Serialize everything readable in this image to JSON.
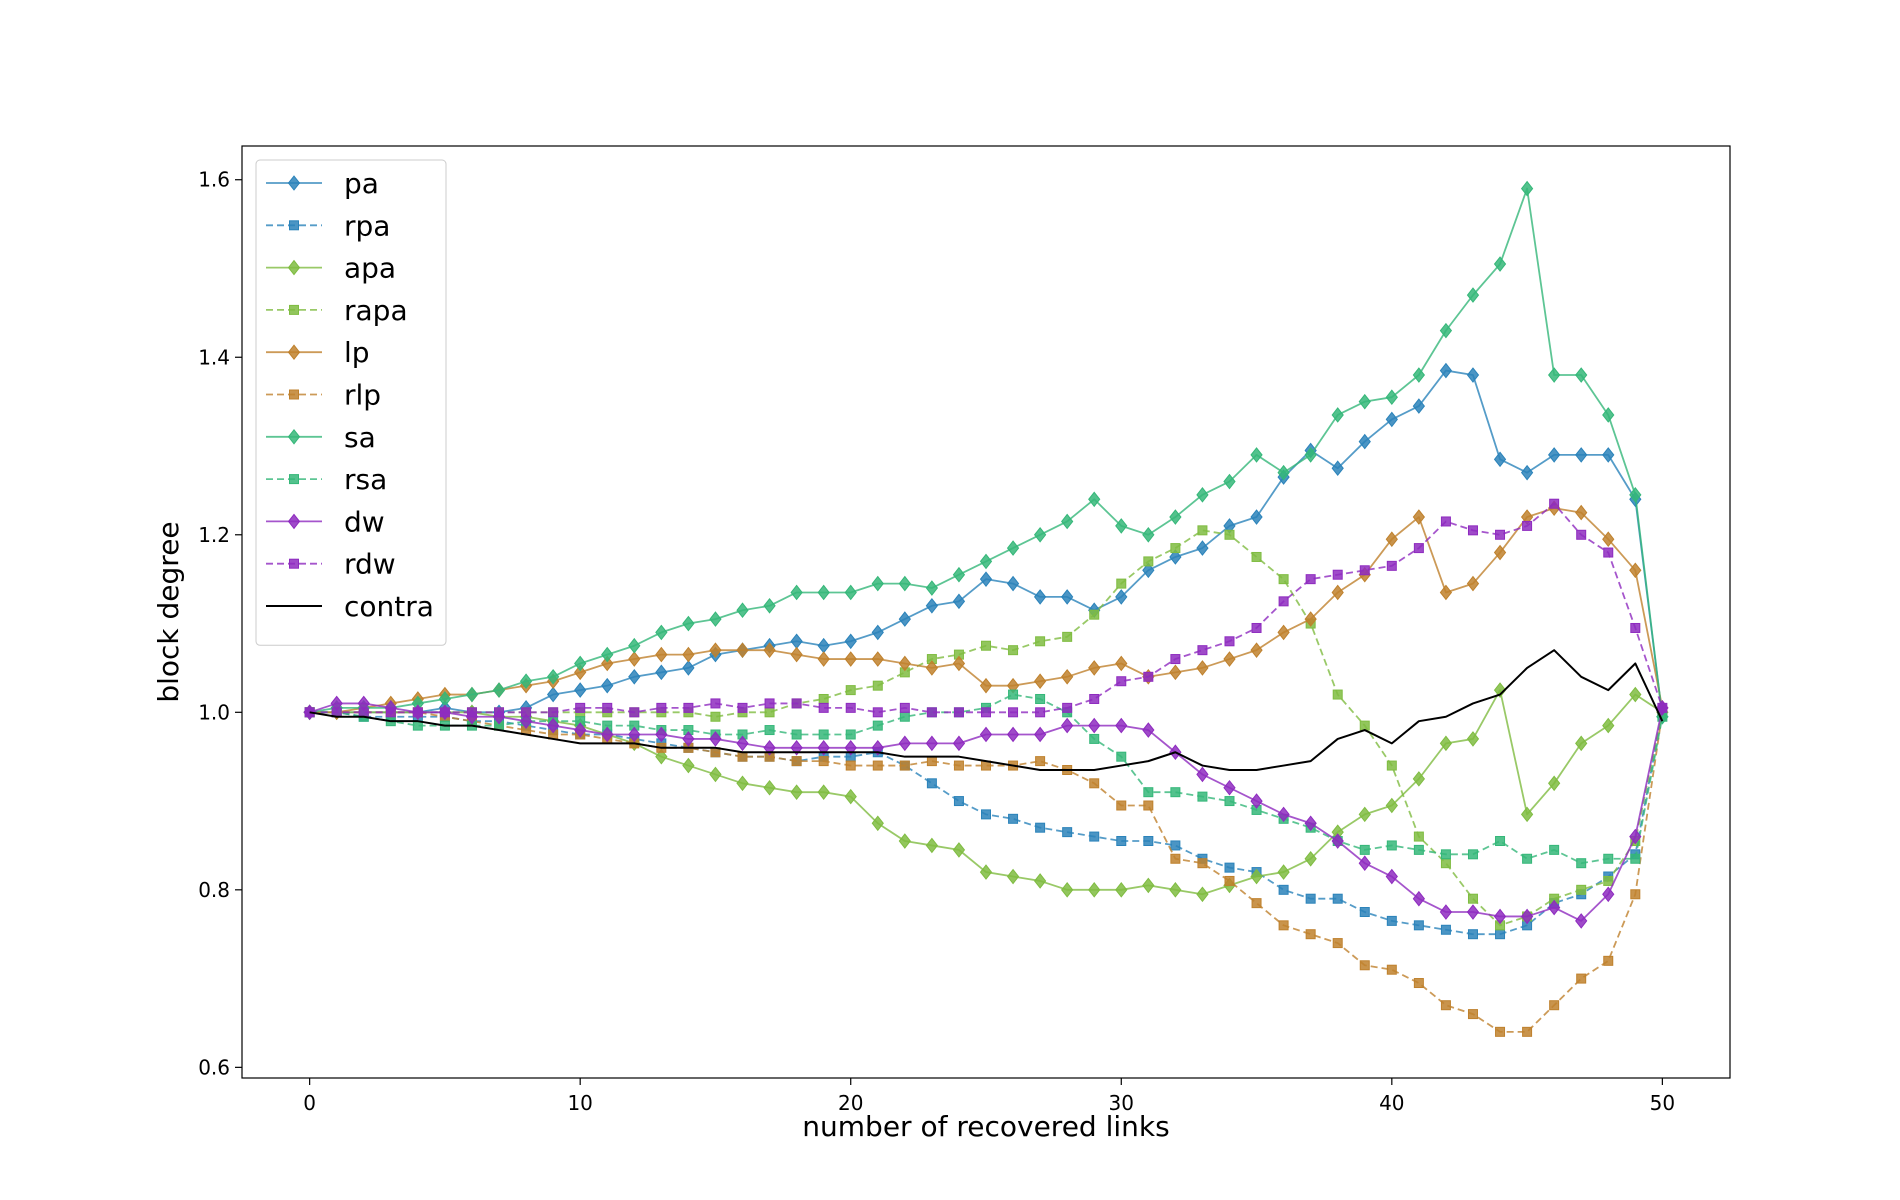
{
  "chart_data": {
    "type": "line",
    "title": "",
    "xlabel": "number of recovered links",
    "ylabel": "block degree",
    "xlim": [
      -2.5,
      52.5
    ],
    "ylim": [
      0.588,
      1.638
    ],
    "x_ticks": [
      0,
      10,
      20,
      30,
      40,
      50
    ],
    "y_ticks": [
      0.6,
      0.8,
      1.0,
      1.2,
      1.4,
      1.6
    ],
    "x_tick_labels": [
      "0",
      "10",
      "20",
      "30",
      "40",
      "50"
    ],
    "y_tick_labels": [
      "0.6",
      "0.8",
      "1.0",
      "1.2",
      "1.4",
      "1.6"
    ],
    "grid": false,
    "legend_position": "upper-left",
    "x": [
      0,
      1,
      2,
      3,
      4,
      5,
      6,
      7,
      8,
      9,
      10,
      11,
      12,
      13,
      14,
      15,
      16,
      17,
      18,
      19,
      20,
      21,
      22,
      23,
      24,
      25,
      26,
      27,
      28,
      29,
      30,
      31,
      32,
      33,
      34,
      35,
      36,
      37,
      38,
      39,
      40,
      41,
      42,
      43,
      44,
      45,
      46,
      47,
      48,
      49,
      50
    ],
    "series": [
      {
        "name": "pa",
        "color": "#2b83ba",
        "style": "solid",
        "marker": "diamond",
        "values": [
          1.0,
          1.0,
          1.0,
          1.0,
          1.0,
          1.005,
          1.0,
          1.0,
          1.005,
          1.02,
          1.025,
          1.03,
          1.04,
          1.045,
          1.05,
          1.065,
          1.07,
          1.075,
          1.08,
          1.075,
          1.08,
          1.09,
          1.105,
          1.12,
          1.125,
          1.15,
          1.145,
          1.13,
          1.13,
          1.115,
          1.13,
          1.16,
          1.175,
          1.185,
          1.21,
          1.22,
          1.265,
          1.295,
          1.275,
          1.305,
          1.33,
          1.345,
          1.385,
          1.38,
          1.285,
          1.27,
          1.29,
          1.29,
          1.29,
          1.24,
          0.995
        ]
      },
      {
        "name": "rpa",
        "color": "#2b83ba",
        "style": "dashed",
        "marker": "square",
        "values": [
          1.0,
          1.0,
          0.995,
          0.995,
          0.995,
          0.995,
          0.99,
          0.99,
          0.985,
          0.98,
          0.975,
          0.975,
          0.97,
          0.965,
          0.96,
          0.955,
          0.95,
          0.95,
          0.945,
          0.95,
          0.95,
          0.955,
          0.94,
          0.92,
          0.9,
          0.885,
          0.88,
          0.87,
          0.865,
          0.86,
          0.855,
          0.855,
          0.85,
          0.835,
          0.825,
          0.82,
          0.8,
          0.79,
          0.79,
          0.775,
          0.765,
          0.76,
          0.755,
          0.75,
          0.75,
          0.76,
          0.785,
          0.795,
          0.815,
          0.84,
          1.0
        ]
      },
      {
        "name": "apa",
        "color": "#7fbc41",
        "style": "solid",
        "marker": "diamond",
        "values": [
          1.0,
          1.0,
          1.0,
          1.0,
          1.0,
          1.0,
          1.0,
          0.995,
          0.995,
          0.99,
          0.985,
          0.975,
          0.965,
          0.95,
          0.94,
          0.93,
          0.92,
          0.915,
          0.91,
          0.91,
          0.905,
          0.875,
          0.855,
          0.85,
          0.845,
          0.82,
          0.815,
          0.81,
          0.8,
          0.8,
          0.8,
          0.805,
          0.8,
          0.795,
          0.805,
          0.815,
          0.82,
          0.835,
          0.865,
          0.885,
          0.895,
          0.925,
          0.965,
          0.97,
          1.025,
          0.885,
          0.92,
          0.965,
          0.985,
          1.02,
          1.0
        ]
      },
      {
        "name": "rapa",
        "color": "#7fbc41",
        "style": "dashed",
        "marker": "square",
        "values": [
          1.0,
          1.0,
          1.0,
          1.0,
          1.0,
          1.0,
          1.0,
          1.0,
          1.0,
          1.0,
          1.0,
          1.0,
          1.0,
          1.0,
          1.0,
          0.995,
          1.0,
          1.0,
          1.01,
          1.015,
          1.025,
          1.03,
          1.045,
          1.06,
          1.065,
          1.075,
          1.07,
          1.08,
          1.085,
          1.11,
          1.145,
          1.17,
          1.185,
          1.205,
          1.2,
          1.175,
          1.15,
          1.1,
          1.02,
          0.985,
          0.94,
          0.86,
          0.83,
          0.79,
          0.76,
          0.77,
          0.79,
          0.8,
          0.81,
          0.855,
          1.0
        ]
      },
      {
        "name": "lp",
        "color": "#bf812d",
        "style": "solid",
        "marker": "diamond",
        "values": [
          1.0,
          1.0,
          1.005,
          1.01,
          1.015,
          1.02,
          1.02,
          1.025,
          1.03,
          1.035,
          1.045,
          1.055,
          1.06,
          1.065,
          1.065,
          1.07,
          1.07,
          1.07,
          1.065,
          1.06,
          1.06,
          1.06,
          1.055,
          1.05,
          1.055,
          1.03,
          1.03,
          1.035,
          1.04,
          1.05,
          1.055,
          1.04,
          1.045,
          1.05,
          1.06,
          1.07,
          1.09,
          1.105,
          1.135,
          1.155,
          1.195,
          1.22,
          1.135,
          1.145,
          1.18,
          1.22,
          1.23,
          1.225,
          1.195,
          1.16,
          1.005
        ]
      },
      {
        "name": "rlp",
        "color": "#bf812d",
        "style": "dashed",
        "marker": "square",
        "values": [
          1.0,
          1.0,
          1.0,
          1.0,
          1.0,
          0.995,
          0.99,
          0.985,
          0.98,
          0.975,
          0.975,
          0.97,
          0.965,
          0.96,
          0.96,
          0.955,
          0.95,
          0.95,
          0.945,
          0.945,
          0.94,
          0.94,
          0.94,
          0.945,
          0.94,
          0.94,
          0.94,
          0.945,
          0.935,
          0.92,
          0.895,
          0.895,
          0.835,
          0.83,
          0.81,
          0.785,
          0.76,
          0.75,
          0.74,
          0.715,
          0.71,
          0.695,
          0.67,
          0.66,
          0.64,
          0.64,
          0.67,
          0.7,
          0.72,
          0.795,
          1.0
        ]
      },
      {
        "name": "sa",
        "color": "#35b779",
        "style": "solid",
        "marker": "diamond",
        "values": [
          1.0,
          1.005,
          1.005,
          1.005,
          1.01,
          1.015,
          1.02,
          1.025,
          1.035,
          1.04,
          1.055,
          1.065,
          1.075,
          1.09,
          1.1,
          1.105,
          1.115,
          1.12,
          1.135,
          1.135,
          1.135,
          1.145,
          1.145,
          1.14,
          1.155,
          1.17,
          1.185,
          1.2,
          1.215,
          1.24,
          1.21,
          1.2,
          1.22,
          1.245,
          1.26,
          1.29,
          1.27,
          1.29,
          1.335,
          1.35,
          1.355,
          1.38,
          1.43,
          1.47,
          1.505,
          1.59,
          1.38,
          1.38,
          1.335,
          1.245,
          0.995
        ]
      },
      {
        "name": "rsa",
        "color": "#35b779",
        "style": "dashed",
        "marker": "square",
        "values": [
          1.0,
          1.0,
          0.995,
          0.99,
          0.985,
          0.985,
          0.985,
          0.985,
          0.99,
          0.99,
          0.99,
          0.985,
          0.985,
          0.98,
          0.98,
          0.975,
          0.975,
          0.98,
          0.975,
          0.975,
          0.975,
          0.985,
          0.995,
          1.0,
          1.0,
          1.005,
          1.02,
          1.015,
          1.0,
          0.97,
          0.95,
          0.91,
          0.91,
          0.905,
          0.9,
          0.89,
          0.88,
          0.87,
          0.855,
          0.845,
          0.85,
          0.845,
          0.84,
          0.84,
          0.855,
          0.835,
          0.845,
          0.83,
          0.835,
          0.835,
          0.995
        ]
      },
      {
        "name": "dw",
        "color": "#8e2bbf",
        "style": "solid",
        "marker": "diamond",
        "values": [
          1.0,
          1.01,
          1.01,
          1.005,
          1.0,
          1.0,
          0.995,
          0.995,
          0.99,
          0.985,
          0.98,
          0.975,
          0.975,
          0.975,
          0.97,
          0.97,
          0.965,
          0.96,
          0.96,
          0.96,
          0.96,
          0.96,
          0.965,
          0.965,
          0.965,
          0.975,
          0.975,
          0.975,
          0.985,
          0.985,
          0.985,
          0.98,
          0.955,
          0.93,
          0.915,
          0.9,
          0.885,
          0.875,
          0.855,
          0.83,
          0.815,
          0.79,
          0.775,
          0.775,
          0.77,
          0.77,
          0.78,
          0.765,
          0.795,
          0.86,
          1.005
        ]
      },
      {
        "name": "rdw",
        "color": "#8e2bbf",
        "style": "dashed",
        "marker": "square",
        "values": [
          1.0,
          1.0,
          1.0,
          1.0,
          1.0,
          1.0,
          1.0,
          1.0,
          1.0,
          1.0,
          1.005,
          1.005,
          1.0,
          1.005,
          1.005,
          1.01,
          1.005,
          1.01,
          1.01,
          1.005,
          1.005,
          1.0,
          1.005,
          1.0,
          1.0,
          1.0,
          1.0,
          1.0,
          1.005,
          1.015,
          1.035,
          1.04,
          1.06,
          1.07,
          1.08,
          1.095,
          1.125,
          1.15,
          1.155,
          1.16,
          1.165,
          1.185,
          1.215,
          1.205,
          1.2,
          1.21,
          1.235,
          1.2,
          1.18,
          1.095,
          1.005
        ]
      },
      {
        "name": "contra",
        "color": "#000000",
        "style": "solid",
        "marker": "none",
        "values": [
          1.0,
          0.995,
          0.995,
          0.99,
          0.99,
          0.985,
          0.985,
          0.98,
          0.975,
          0.97,
          0.965,
          0.965,
          0.965,
          0.96,
          0.96,
          0.96,
          0.955,
          0.955,
          0.955,
          0.955,
          0.955,
          0.955,
          0.95,
          0.95,
          0.95,
          0.945,
          0.94,
          0.935,
          0.935,
          0.935,
          0.94,
          0.945,
          0.955,
          0.94,
          0.935,
          0.935,
          0.94,
          0.945,
          0.97,
          0.98,
          0.965,
          0.99,
          0.995,
          1.01,
          1.02,
          1.05,
          1.07,
          1.04,
          1.025,
          1.055,
          0.99
        ]
      }
    ]
  }
}
